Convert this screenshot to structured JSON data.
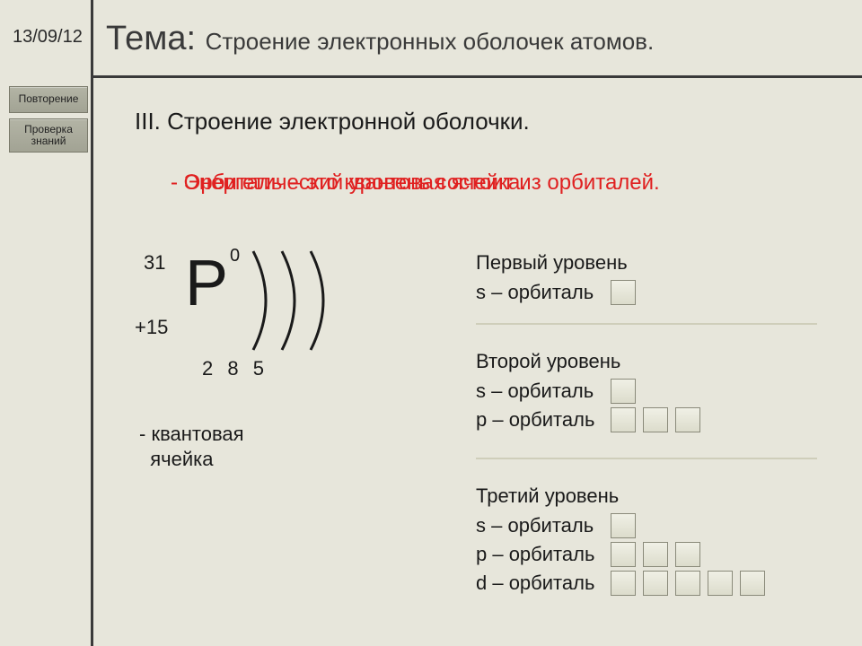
{
  "date": "13/09/12",
  "sidebar": {
    "repeat": "Повторение",
    "check": "Проверка знаний"
  },
  "title_prefix": "Тема:",
  "title_sub": "Строение электронных оболочек атомов.",
  "section_heading": "III. Строение электронной оболочки.",
  "overlay": {
    "line_a": "- Энергетический уровень состоит из орбиталей.",
    "line_b": "- Орбиталь – это квантовая ячейка."
  },
  "diagram": {
    "element_symbol": "P",
    "mass_number": "31",
    "charge": "+15",
    "superscript": "0",
    "shell_electrons": [
      "2",
      "8",
      "5"
    ],
    "note": "- квантовая\n  ячейка",
    "arc_count": 3,
    "arc_stroke": "#1a1a1a",
    "arc_width": 3
  },
  "levels": [
    {
      "title": "Первый уровень",
      "orbitals": [
        {
          "label": "s – орбиталь",
          "cells": 1
        }
      ]
    },
    {
      "title": "Второй уровень",
      "orbitals": [
        {
          "label": "s – орбиталь",
          "cells": 1
        },
        {
          "label": "p – орбиталь",
          "cells": 3
        }
      ]
    },
    {
      "title": "Третий уровень",
      "orbitals": [
        {
          "label": "s – орбиталь",
          "cells": 1
        },
        {
          "label": "p – орбиталь",
          "cells": 3
        },
        {
          "label": "d – орбиталь",
          "cells": 5
        }
      ]
    }
  ],
  "layout": {
    "level_tops": [
      280,
      390,
      540
    ],
    "sep_tops": [
      360,
      510
    ]
  },
  "colors": {
    "bg": "#e7e6db",
    "line": "#3a3a3a",
    "red": "#e02020",
    "cell_border": "#8a8a7a",
    "sep": "#cfceba",
    "btn_grad_top": "#b3b4a5",
    "btn_grad_bot": "#a2a394"
  }
}
